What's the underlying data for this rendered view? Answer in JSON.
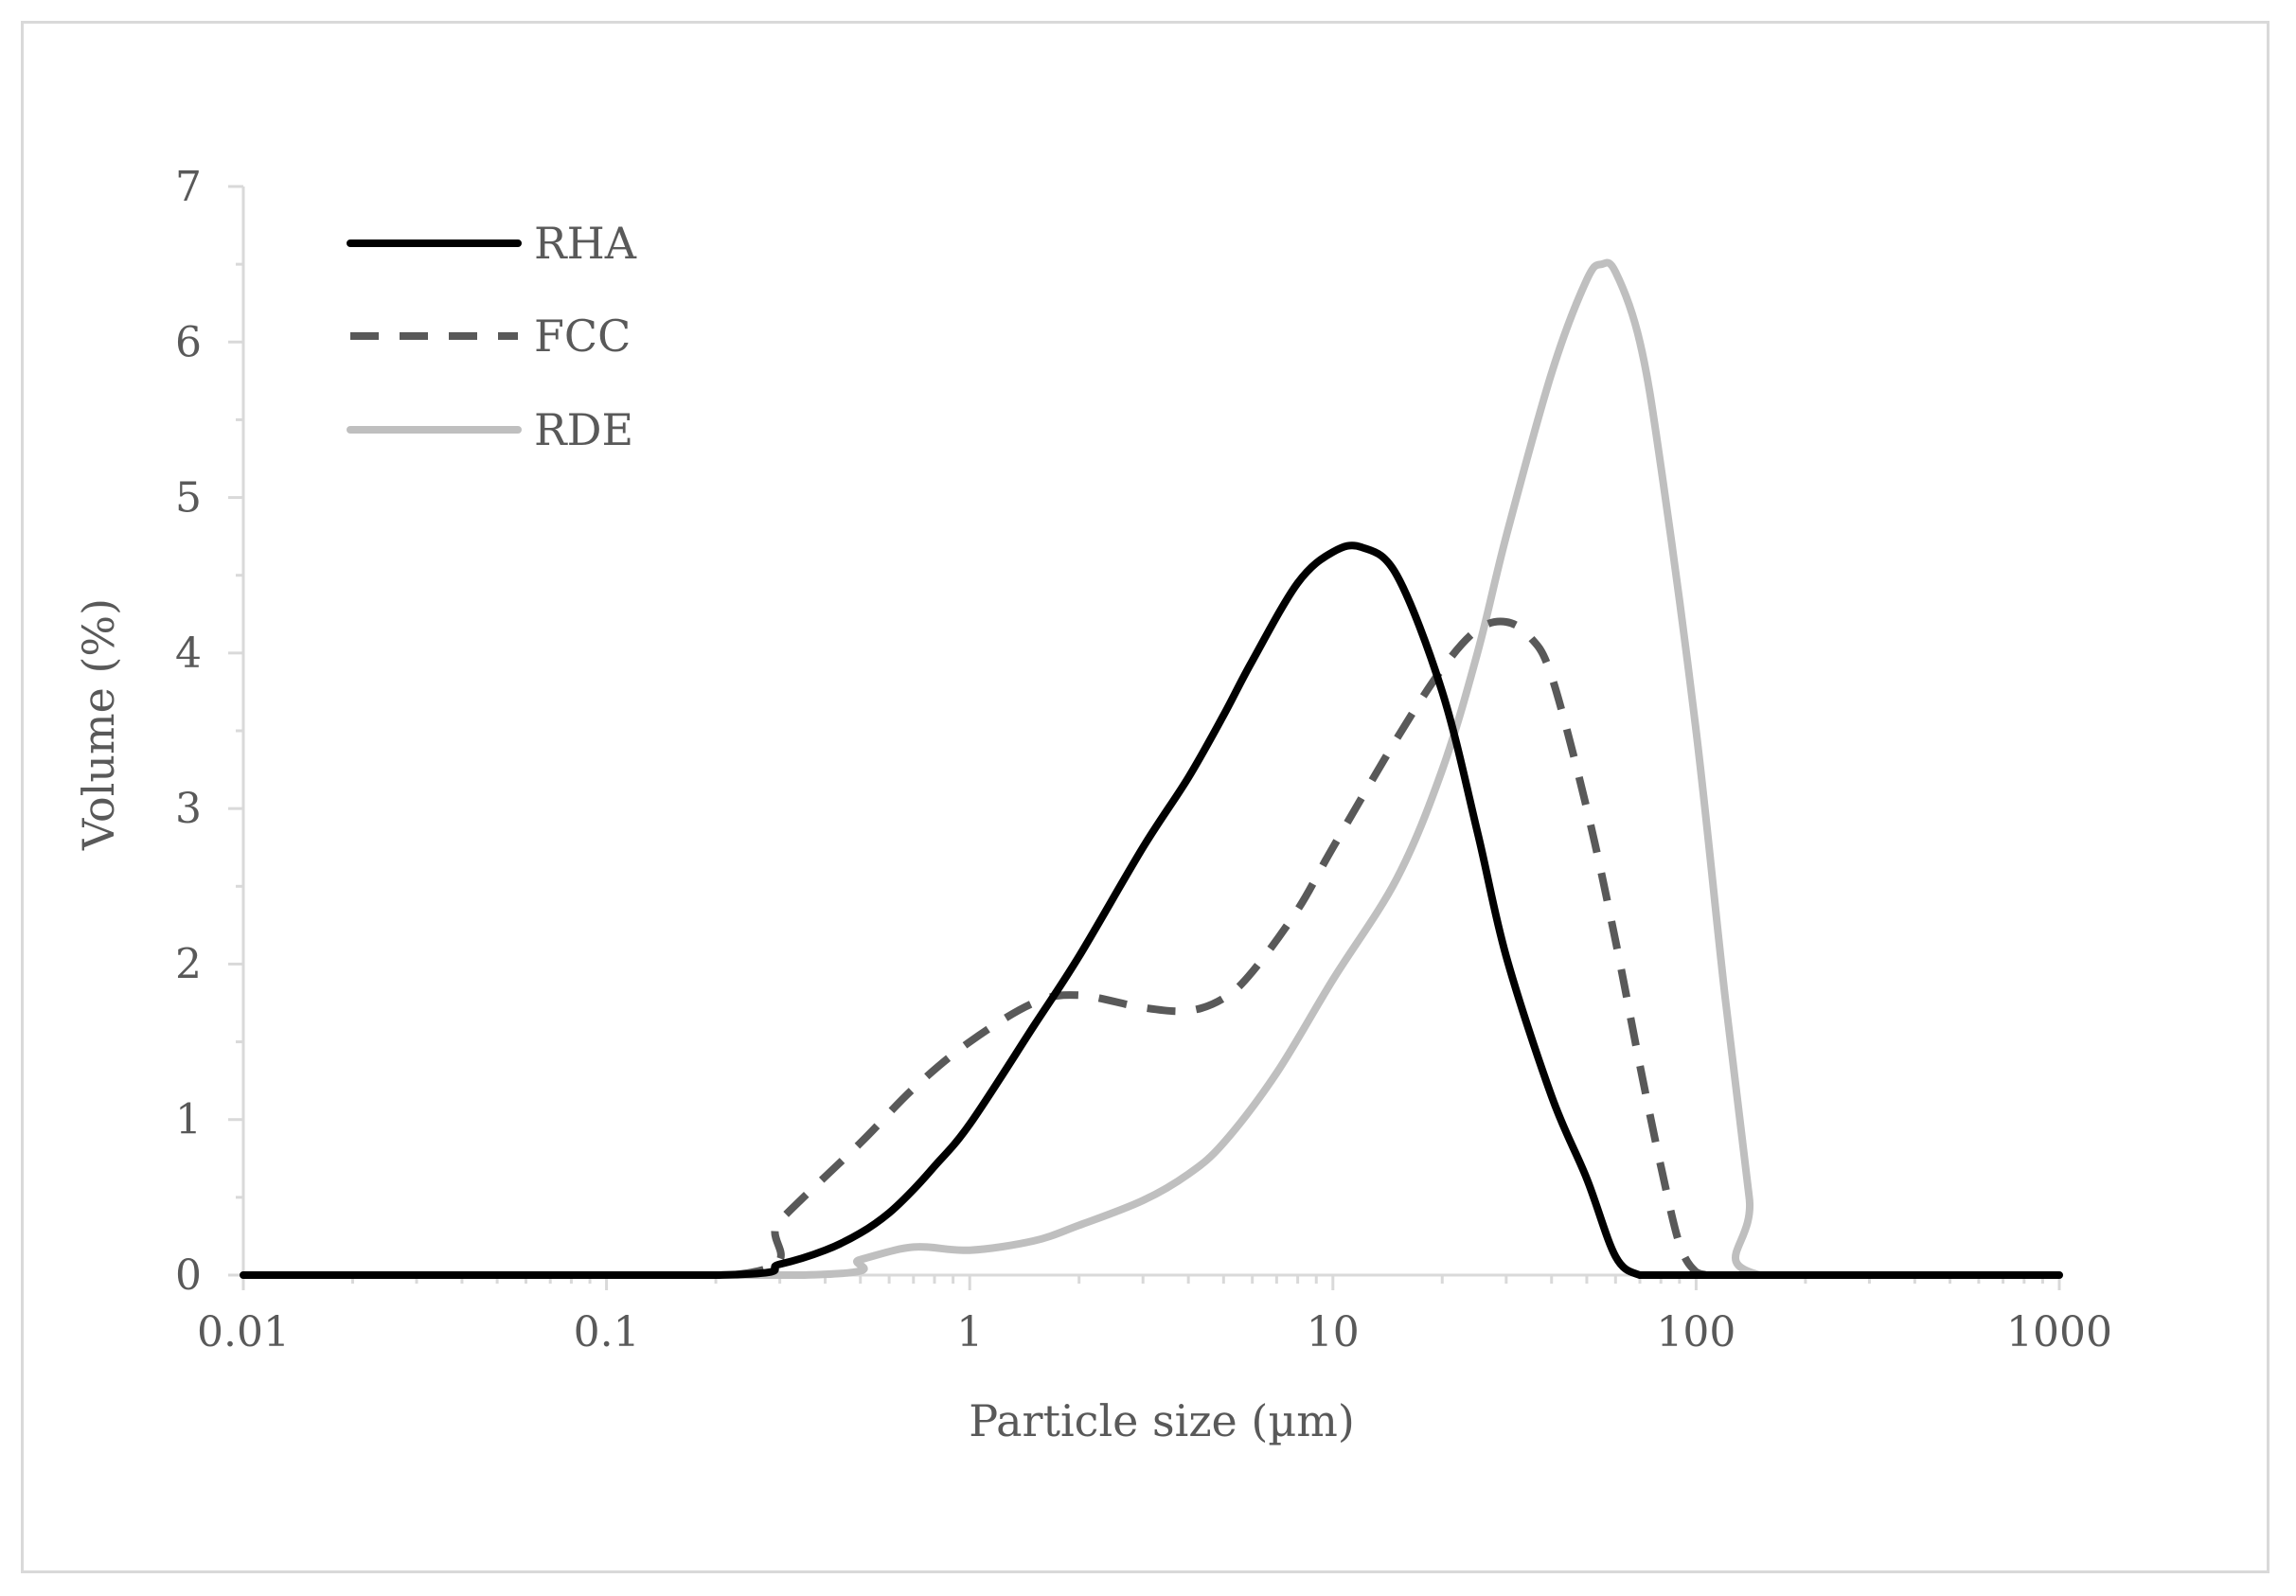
{
  "chart_data": {
    "type": "line",
    "title": "",
    "xlabel": "Particle size (µm)",
    "ylabel": "Volume (%)",
    "x_scale": "log",
    "xlim": [
      0.01,
      1000
    ],
    "ylim": [
      0,
      7
    ],
    "x_ticks": [
      "0.01",
      "0.1",
      "1",
      "10",
      "100",
      "1000"
    ],
    "y_ticks": [
      "0",
      "1",
      "2",
      "3",
      "4",
      "5",
      "6",
      "7"
    ],
    "grid": false,
    "legend_position": "top-left",
    "series": [
      {
        "name": "RHA",
        "color": "#000000",
        "style": "solid",
        "x": [
          0.01,
          0.2,
          0.3,
          0.4,
          0.5,
          0.6,
          0.7,
          0.8,
          1,
          1.5,
          2,
          3,
          4,
          5,
          6,
          8,
          10,
          12,
          15,
          20,
          25,
          30,
          40,
          50,
          60,
          70,
          80,
          100,
          120,
          1000
        ],
        "y": [
          0,
          0,
          0.07,
          0.16,
          0.27,
          0.4,
          0.55,
          0.7,
          0.97,
          1.6,
          2.05,
          2.75,
          3.2,
          3.6,
          3.95,
          4.45,
          4.65,
          4.68,
          4.5,
          3.75,
          2.85,
          2.05,
          1.15,
          0.62,
          0.12,
          0,
          0,
          0,
          0,
          0
        ]
      },
      {
        "name": "FCC",
        "color": "#595959",
        "style": "dashed",
        "x": [
          0.01,
          0.22,
          0.3,
          0.5,
          0.7,
          1,
          1.5,
          2,
          3,
          4,
          5,
          6,
          8,
          10,
          15,
          20,
          25,
          30,
          35,
          40,
          50,
          60,
          70,
          80,
          90,
          100,
          110,
          120,
          1000
        ],
        "y": [
          0,
          0,
          0.35,
          0.85,
          1.2,
          1.5,
          1.75,
          1.8,
          1.72,
          1.7,
          1.78,
          1.95,
          2.35,
          2.75,
          3.45,
          3.9,
          4.15,
          4.2,
          4.1,
          3.85,
          3.0,
          2.15,
          1.35,
          0.7,
          0.2,
          0.02,
          0,
          0,
          0
        ]
      },
      {
        "name": "RDE",
        "color": "#bfbfbf",
        "style": "solid",
        "x": [
          0.01,
          0.35,
          0.5,
          0.7,
          1,
          1.5,
          2,
          3,
          4,
          5,
          7,
          10,
          15,
          20,
          25,
          30,
          40,
          50,
          55,
          60,
          70,
          80,
          100,
          120,
          140,
          150,
          1000
        ],
        "y": [
          0,
          0,
          0.1,
          0.18,
          0.16,
          0.22,
          0.32,
          0.48,
          0.65,
          0.85,
          1.3,
          1.9,
          2.55,
          3.25,
          4.0,
          4.75,
          5.8,
          6.4,
          6.5,
          6.45,
          6.0,
          5.2,
          3.5,
          1.8,
          0.5,
          0,
          0
        ]
      }
    ]
  }
}
